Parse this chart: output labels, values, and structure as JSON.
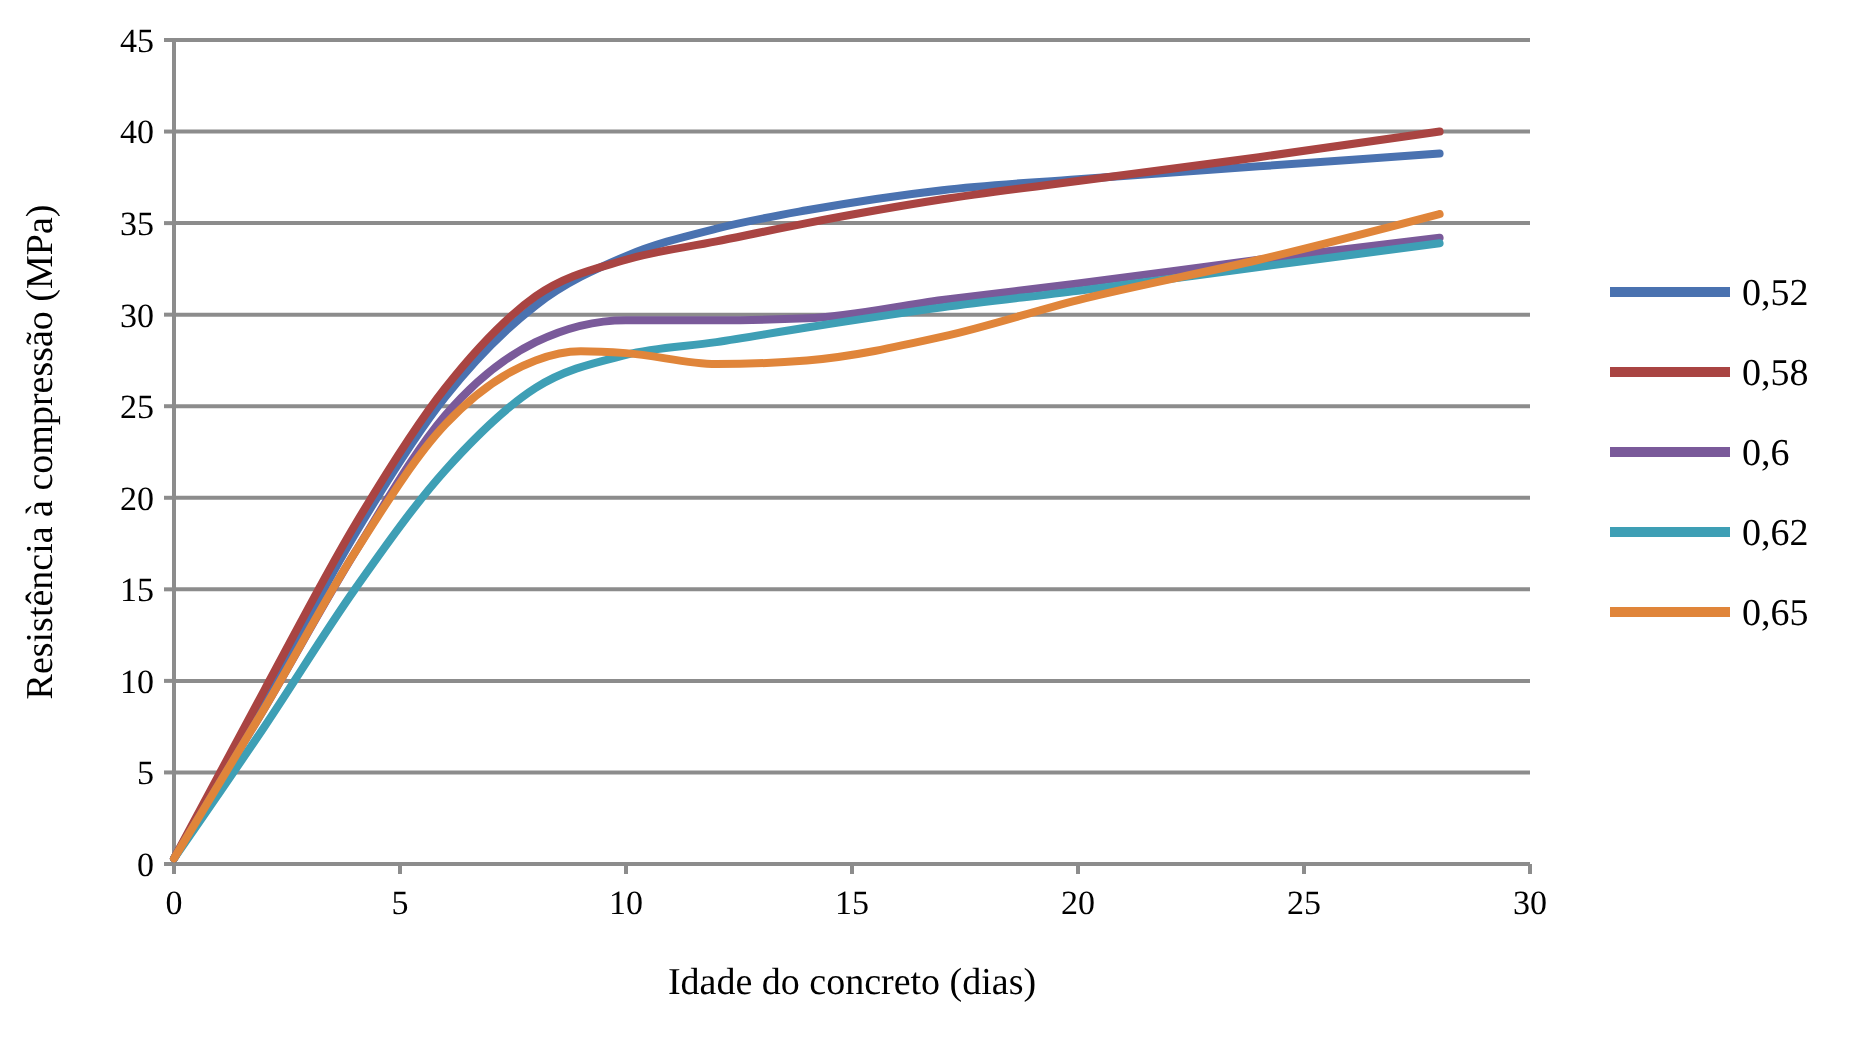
{
  "chart_data": {
    "type": "line",
    "xlabel": "Idade do concreto (dias)",
    "ylabel": "Resistência à compressão (MPa)",
    "xlim": [
      0,
      30
    ],
    "xticks": [
      0,
      5,
      10,
      15,
      20,
      25,
      30
    ],
    "ylim": [
      0,
      45
    ],
    "yticks": [
      0,
      5,
      10,
      15,
      20,
      25,
      30,
      35,
      40,
      45
    ],
    "grid": "y",
    "legend": "right",
    "marker": "none",
    "line_style": "solid",
    "x": [
      0,
      2,
      4,
      6,
      8,
      10,
      12,
      14,
      17,
      20,
      24,
      28
    ],
    "series": [
      {
        "name": "0,52",
        "color": "#4a72b0",
        "values": [
          0.3,
          9,
          18,
          25.5,
          30.5,
          33.2,
          34.7,
          35.7,
          36.8,
          37.4,
          38.1,
          38.8
        ]
      },
      {
        "name": "0,58",
        "color": "#a94442",
        "values": [
          0.3,
          9.5,
          18.5,
          26,
          31,
          33,
          34,
          35,
          36.3,
          37.3,
          38.6,
          40
        ]
      },
      {
        "name": "0,6",
        "color": "#7a5a9a",
        "values": [
          0.3,
          8.5,
          17,
          24.5,
          28.5,
          29.7,
          29.7,
          29.8,
          30.8,
          31.7,
          33,
          34.2
        ]
      },
      {
        "name": "0,62",
        "color": "#3e9fb5",
        "values": [
          0.3,
          7.5,
          15,
          21.5,
          26,
          27.8,
          28.5,
          29.3,
          30.4,
          31.3,
          32.6,
          33.9
        ]
      },
      {
        "name": "0,65",
        "color": "#e0853a",
        "x": [
          0,
          2,
          4,
          6,
          8,
          9,
          10,
          12,
          14,
          17,
          20,
          24,
          28
        ],
        "values": [
          0.3,
          8.5,
          17,
          24,
          27.5,
          28,
          27.9,
          27.3,
          27.5,
          28.8,
          30.8,
          33,
          35.5
        ]
      }
    ]
  }
}
